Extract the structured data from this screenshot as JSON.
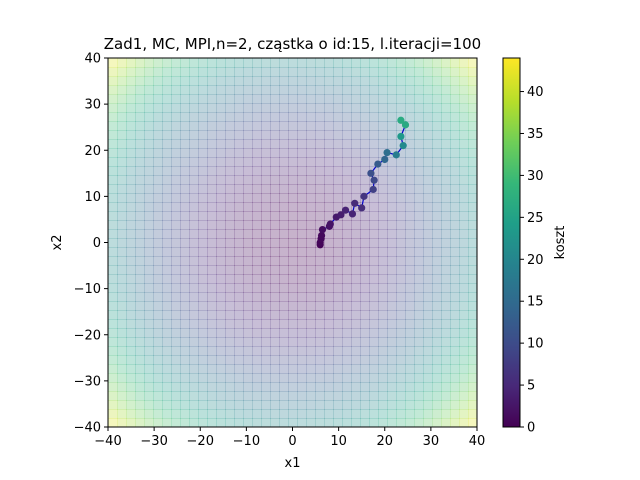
{
  "chart_data": {
    "type": "scatter",
    "title": "Zad1, MC, MPI,n=2, cząstka o id:15, l.iteracji=100",
    "xlabel": "x1",
    "ylabel": "x2",
    "xlim": [
      -40,
      40
    ],
    "ylim": [
      -40,
      40
    ],
    "xticks": [
      "−40",
      "−30",
      "−20",
      "−10",
      "0",
      "10",
      "20",
      "30",
      "40"
    ],
    "yticks": [
      "−40",
      "−30",
      "−20",
      "−10",
      "0",
      "10",
      "20",
      "30",
      "40"
    ],
    "colorbar": {
      "label": "koszt",
      "range": [
        0,
        44
      ],
      "ticks": [
        "0",
        "5",
        "10",
        "15",
        "20",
        "25",
        "30",
        "35",
        "40"
      ],
      "colormap": "viridis"
    },
    "background": "cost surface x1^2 + x2^2 heatmap (light, semi-transparent)",
    "path_color": "#0000cc",
    "grid": false,
    "points": [
      {
        "x": 6.0,
        "y": -0.5,
        "c": 0.3
      },
      {
        "x": 6.0,
        "y": 0.0,
        "c": 0.5
      },
      {
        "x": 6.2,
        "y": 0.8,
        "c": 0.8
      },
      {
        "x": 6.3,
        "y": 1.5,
        "c": 1.0
      },
      {
        "x": 6.5,
        "y": 2.8,
        "c": 1.5
      },
      {
        "x": 8.0,
        "y": 3.5,
        "c": 2.0
      },
      {
        "x": 8.2,
        "y": 4.0,
        "c": 2.3
      },
      {
        "x": 9.5,
        "y": 5.5,
        "c": 3.0
      },
      {
        "x": 10.5,
        "y": 6.0,
        "c": 3.5
      },
      {
        "x": 11.5,
        "y": 7.0,
        "c": 4.3
      },
      {
        "x": 13.0,
        "y": 6.2,
        "c": 4.5
      },
      {
        "x": 13.5,
        "y": 8.5,
        "c": 5.3
      },
      {
        "x": 15.0,
        "y": 7.5,
        "c": 5.8
      },
      {
        "x": 15.5,
        "y": 10.0,
        "c": 6.8
      },
      {
        "x": 17.5,
        "y": 11.5,
        "c": 8.5
      },
      {
        "x": 17.7,
        "y": 13.5,
        "c": 9.8
      },
      {
        "x": 17.0,
        "y": 15.0,
        "c": 10.8
      },
      {
        "x": 18.5,
        "y": 17.0,
        "c": 12.5
      },
      {
        "x": 20.0,
        "y": 18.0,
        "c": 14.5
      },
      {
        "x": 20.5,
        "y": 19.5,
        "c": 16.0
      },
      {
        "x": 22.5,
        "y": 19.0,
        "c": 18.5
      },
      {
        "x": 24.0,
        "y": 21.0,
        "c": 21.0
      },
      {
        "x": 23.5,
        "y": 23.0,
        "c": 23.5
      },
      {
        "x": 24.5,
        "y": 25.5,
        "c": 26.5
      },
      {
        "x": 23.5,
        "y": 26.5,
        "c": 27.0
      }
    ]
  }
}
